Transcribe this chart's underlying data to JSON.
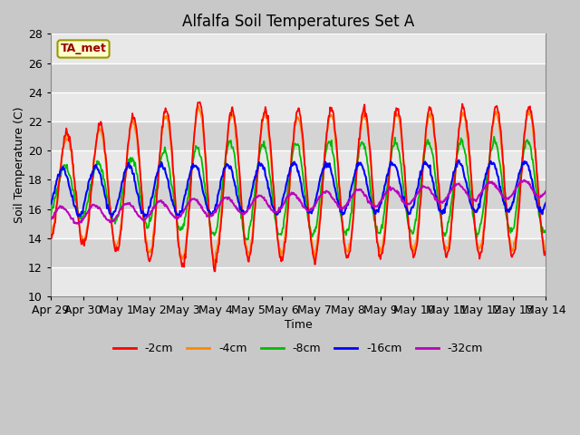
{
  "title": "Alfalfa Soil Temperatures Set A",
  "xlabel": "Time",
  "ylabel": "Soil Temperature (C)",
  "ylim": [
    10,
    28
  ],
  "xlim": [
    0,
    15
  ],
  "annotation": "TA_met",
  "series_colors": {
    "-2cm": "#ff0000",
    "-4cm": "#ff8800",
    "-8cm": "#00bb00",
    "-16cm": "#0000ff",
    "-32cm": "#bb00bb"
  },
  "x_tick_labels": [
    "Apr 29",
    "Apr 30",
    "May 1",
    "May 2",
    "May 3",
    "May 4",
    "May 5",
    "May 6",
    "May 7",
    "May 8",
    "May 9",
    "May 10",
    "May 11",
    "May 12",
    "May 13",
    "May 14"
  ],
  "yticks": [
    10,
    12,
    14,
    16,
    18,
    20,
    22,
    24,
    26,
    28
  ],
  "band_colors": [
    "#e8e8e8",
    "#d4d4d4"
  ],
  "fig_facecolor": "#c8c8c8",
  "ax_facecolor": "#e0e0e0"
}
